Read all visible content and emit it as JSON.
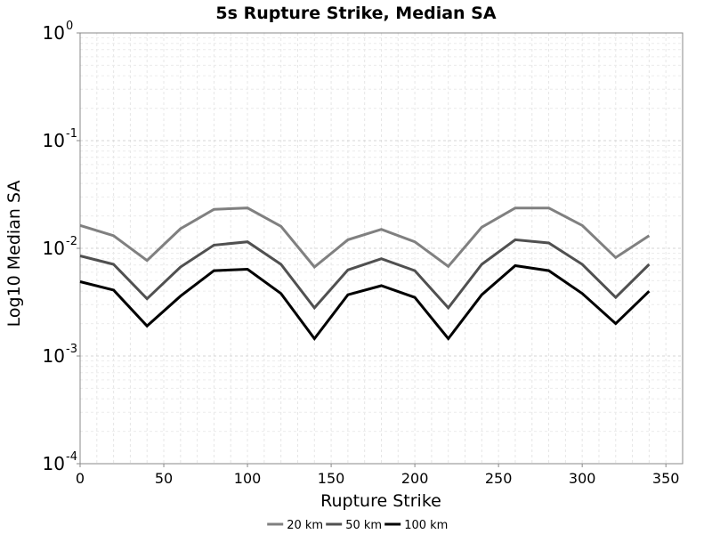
{
  "chart_data": {
    "type": "line",
    "title": "5s Rupture Strike, Median SA",
    "xlabel": "Rupture Strike",
    "ylabel": "Log10 Median SA",
    "xlim": [
      0,
      360
    ],
    "ylim": [
      0.0001,
      1
    ],
    "yscale": "log",
    "grid": true,
    "legend_position": "bottom-center",
    "x_ticks": [
      0,
      50,
      100,
      150,
      200,
      250,
      300,
      350
    ],
    "y_ticks": [
      {
        "base": "10",
        "exp": "0",
        "value": 1
      },
      {
        "base": "10",
        "exp": "-1",
        "value": 0.1
      },
      {
        "base": "10",
        "exp": "-2",
        "value": 0.01
      },
      {
        "base": "10",
        "exp": "-3",
        "value": 0.001
      },
      {
        "base": "10",
        "exp": "-4",
        "value": 0.0001
      }
    ],
    "x": [
      0,
      20,
      40,
      60,
      80,
      100,
      120,
      140,
      160,
      180,
      200,
      220,
      240,
      260,
      280,
      300,
      320,
      340
    ],
    "series": [
      {
        "name": "20 km",
        "color": "#808080",
        "values": [
          0.0163,
          0.0131,
          0.0077,
          0.0152,
          0.023,
          0.0237,
          0.016,
          0.0067,
          0.012,
          0.015,
          0.0115,
          0.0068,
          0.0157,
          0.0237,
          0.0237,
          0.0163,
          0.0082,
          0.0131
        ]
      },
      {
        "name": "50 km",
        "color": "#505050",
        "values": [
          0.0085,
          0.0071,
          0.0034,
          0.0067,
          0.0107,
          0.0115,
          0.0071,
          0.0028,
          0.0063,
          0.008,
          0.0062,
          0.0028,
          0.0071,
          0.012,
          0.0112,
          0.0071,
          0.0035,
          0.0071
        ]
      },
      {
        "name": "100 km",
        "color": "#000000",
        "values": [
          0.0049,
          0.0041,
          0.0019,
          0.0036,
          0.0062,
          0.0064,
          0.0038,
          0.00145,
          0.0037,
          0.0045,
          0.0035,
          0.00145,
          0.0037,
          0.0069,
          0.0062,
          0.0038,
          0.002,
          0.004
        ]
      }
    ]
  }
}
